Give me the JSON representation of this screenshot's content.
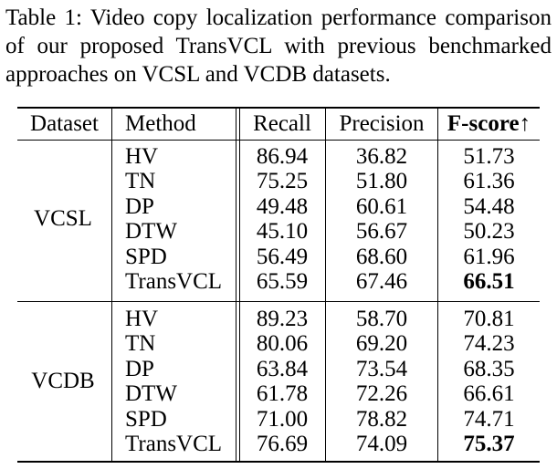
{
  "caption": "Table 1: Video copy localization performance comparison of our proposed TransVCL with previous benchmarked approaches on VCSL and VCDB datasets.",
  "headers": [
    "Dataset",
    "Method",
    "Recall",
    "Precision",
    "F-score↑"
  ],
  "groups": [
    {
      "dataset": "VCSL",
      "rows": [
        {
          "method": "HV",
          "recall": "86.94",
          "precision": "36.82",
          "fscore": "51.73"
        },
        {
          "method": "TN",
          "recall": "75.25",
          "precision": "51.80",
          "fscore": "61.36"
        },
        {
          "method": "DP",
          "recall": "49.48",
          "precision": "60.61",
          "fscore": "54.48"
        },
        {
          "method": "DTW",
          "recall": "45.10",
          "precision": "56.67",
          "fscore": "50.23"
        },
        {
          "method": "SPD",
          "recall": "56.49",
          "precision": "68.60",
          "fscore": "61.96"
        },
        {
          "method": "TransVCL",
          "recall": "65.59",
          "precision": "67.46",
          "fscore": "66.51",
          "best": true
        }
      ]
    },
    {
      "dataset": "VCDB",
      "rows": [
        {
          "method": "HV",
          "recall": "89.23",
          "precision": "58.70",
          "fscore": "70.81"
        },
        {
          "method": "TN",
          "recall": "80.06",
          "precision": "69.20",
          "fscore": "74.23"
        },
        {
          "method": "DP",
          "recall": "63.84",
          "precision": "73.54",
          "fscore": "68.35"
        },
        {
          "method": "DTW",
          "recall": "61.78",
          "precision": "72.26",
          "fscore": "66.61"
        },
        {
          "method": "SPD",
          "recall": "71.00",
          "precision": "78.82",
          "fscore": "74.71"
        },
        {
          "method": "TransVCL",
          "recall": "76.69",
          "precision": "74.09",
          "fscore": "75.37",
          "best": true
        }
      ]
    }
  ]
}
